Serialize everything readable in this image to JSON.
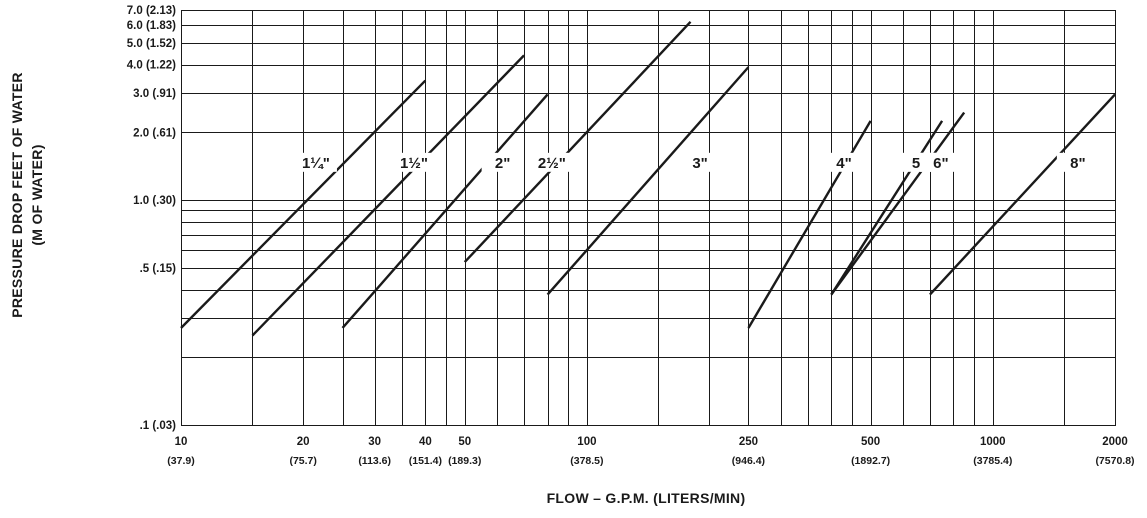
{
  "chart_data": {
    "type": "line",
    "xlabel": "FLOW – G.P.M. (LITERS/MIN)",
    "ylabel_line1": "PRESSURE DROP FEET OF WATER",
    "ylabel_line2": "(M OF WATER)",
    "x_scale": "log",
    "y_scale": "log",
    "xlim": [
      10,
      2000
    ],
    "ylim": [
      0.1,
      7.0
    ],
    "grid": true,
    "x_ticks": [
      {
        "value": 10,
        "label": "10",
        "sub": "(37.9)"
      },
      {
        "value": 20,
        "label": "20",
        "sub": "(75.7)"
      },
      {
        "value": 30,
        "label": "30",
        "sub": "(113.6)"
      },
      {
        "value": 40,
        "label": "40",
        "sub": "(151.4)"
      },
      {
        "value": 50,
        "label": "50",
        "sub": "(189.3)"
      },
      {
        "value": 100,
        "label": "100",
        "sub": "(378.5)"
      },
      {
        "value": 250,
        "label": "250",
        "sub": "(946.4)"
      },
      {
        "value": 500,
        "label": "500",
        "sub": "(1892.7)"
      },
      {
        "value": 1000,
        "label": "1000",
        "sub": "(3785.4)"
      },
      {
        "value": 2000,
        "label": "2000",
        "sub": "(7570.8)"
      }
    ],
    "x_gridlines": [
      15,
      20,
      25,
      30,
      35,
      40,
      45,
      50,
      60,
      70,
      80,
      90,
      100,
      150,
      200,
      250,
      300,
      350,
      400,
      450,
      500,
      600,
      700,
      800,
      900,
      1000,
      1500,
      2000
    ],
    "y_ticks": [
      {
        "value": 0.1,
        "label": ".1 (.03)"
      },
      {
        "value": 0.5,
        "label": ".5 (.15)"
      },
      {
        "value": 1.0,
        "label": "1.0 (.30)"
      },
      {
        "value": 2.0,
        "label": "2.0 (.61)"
      },
      {
        "value": 3.0,
        "label": "3.0 (.91)"
      },
      {
        "value": 4.0,
        "label": "4.0 (1.22)"
      },
      {
        "value": 5.0,
        "label": "5.0 (1.52)"
      },
      {
        "value": 6.0,
        "label": "6.0 (1.83)"
      },
      {
        "value": 7.0,
        "label": "7.0 (2.13)"
      }
    ],
    "y_gridlines": [
      0.2,
      0.3,
      0.4,
      0.5,
      0.6,
      0.7,
      0.8,
      0.9,
      1.0,
      2.0,
      3.0,
      4.0,
      5.0,
      6.0
    ],
    "series": [
      {
        "name": "1¼\"",
        "x": [
          10,
          40
        ],
        "y": [
          0.27,
          3.4
        ],
        "label_at": [
          21.5,
          1.42
        ]
      },
      {
        "name": "1½\"",
        "x": [
          15,
          70
        ],
        "y": [
          0.25,
          4.4
        ],
        "label_at": [
          37.5,
          1.42
        ]
      },
      {
        "name": "2\"",
        "x": [
          25,
          80
        ],
        "y": [
          0.27,
          2.95
        ],
        "label_at": [
          62,
          1.42
        ]
      },
      {
        "name": "2½\"",
        "x": [
          50,
          180
        ],
        "y": [
          0.53,
          6.2
        ],
        "label_at": [
          82,
          1.42
        ]
      },
      {
        "name": "3\"",
        "x": [
          80,
          250
        ],
        "y": [
          0.38,
          3.9
        ],
        "label_at": [
          190,
          1.42
        ]
      },
      {
        "name": "4\"",
        "x": [
          250,
          500
        ],
        "y": [
          0.27,
          2.25
        ],
        "label_at": [
          430,
          1.42
        ]
      },
      {
        "name": "5\"",
        "x": [
          400,
          750
        ],
        "y": [
          0.38,
          2.25
        ],
        "label_at": [
          660,
          1.42
        ]
      },
      {
        "name": "6\"",
        "x": [
          400,
          850
        ],
        "y": [
          0.38,
          2.45
        ],
        "label_at": [
          745,
          1.42
        ]
      },
      {
        "name": "8\"",
        "x": [
          700,
          2000
        ],
        "y": [
          0.38,
          2.95
        ],
        "label_at": [
          1620,
          1.42
        ]
      }
    ]
  }
}
